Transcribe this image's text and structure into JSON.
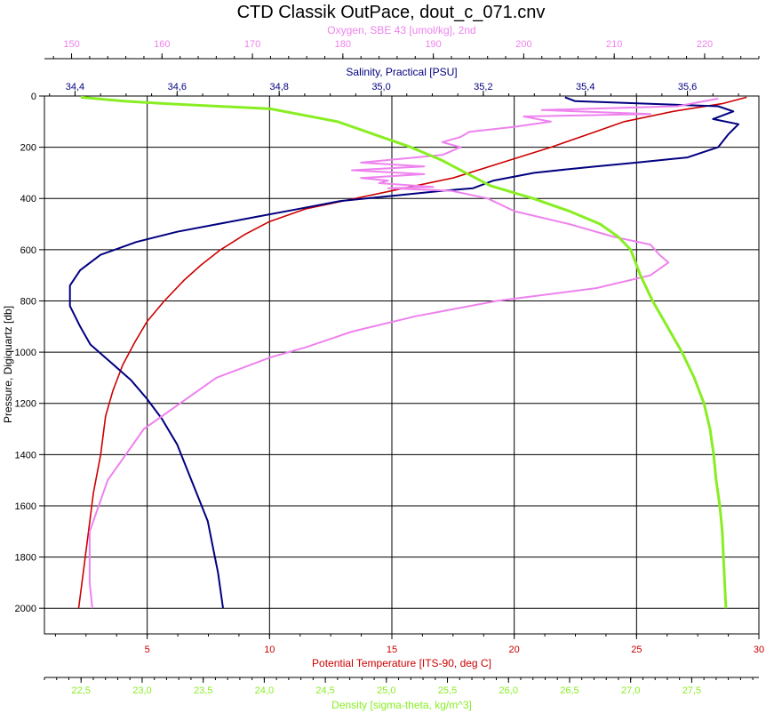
{
  "chart_data": {
    "type": "line",
    "title": "CTD Classik OutPace, dout_c_071.cnv",
    "plot_bg": "#ffffff",
    "grid": true,
    "y_axis": {
      "label": "Pressure, Digiquartz [db]",
      "range": [
        0,
        2100
      ],
      "inverted": true,
      "ticks": [
        0,
        200,
        400,
        600,
        800,
        1000,
        1200,
        1400,
        1600,
        1800,
        2000
      ],
      "tick_labels": [
        "0",
        "200",
        "400",
        "600",
        "800",
        "1000",
        "1200",
        "1400",
        "1600",
        "1800",
        "2000"
      ],
      "color": "#000000"
    },
    "x_axes": [
      {
        "id": "oxygen",
        "label": "Oxygen, SBE 43 [umol/kg], 2nd",
        "position": "top-outer",
        "color": "#ee82ee",
        "range": [
          147,
          226
        ],
        "ticks": [
          150,
          160,
          170,
          180,
          190,
          200,
          210,
          220
        ],
        "tick_labels": [
          "150",
          "160",
          "170",
          "180",
          "190",
          "200",
          "210",
          "220"
        ]
      },
      {
        "id": "salinity",
        "label": "Salinity, Practical [PSU]",
        "position": "top-inner",
        "color": "#000080",
        "range": [
          34.34,
          35.74
        ],
        "ticks": [
          34.4,
          34.6,
          34.8,
          35.0,
          35.2,
          35.4,
          35.6
        ],
        "tick_labels": [
          "34,4",
          "34,6",
          "34,8",
          "35,0",
          "35,2",
          "35,4",
          "35,6"
        ]
      },
      {
        "id": "temperature",
        "label": "Potential Temperature [ITS-90, deg C]",
        "position": "bottom-inner",
        "color": "#cc0000",
        "range": [
          0.8,
          30
        ],
        "ticks": [
          5,
          10,
          15,
          20,
          25,
          30
        ],
        "tick_labels": [
          "5",
          "10",
          "15",
          "20",
          "25",
          "30"
        ]
      },
      {
        "id": "density",
        "label": "Density [sigma-theta, kg/m^3]",
        "position": "bottom-outer",
        "color": "#88ee22",
        "range": [
          22.2,
          28.05
        ],
        "ticks": [
          22.5,
          23.0,
          23.5,
          24.0,
          24.5,
          25.0,
          25.5,
          26.0,
          26.5,
          27.0,
          27.5
        ],
        "tick_labels": [
          "22,5",
          "23,0",
          "23,5",
          "24,0",
          "24,5",
          "25,0",
          "25,5",
          "26,0",
          "26,5",
          "27,0",
          "27,5"
        ]
      }
    ],
    "series": [
      {
        "id": "temperature",
        "axis": "temperature",
        "color": "#cc0000",
        "points": [
          [
            29.5,
            5
          ],
          [
            28.5,
            30
          ],
          [
            26.5,
            60
          ],
          [
            24.5,
            100
          ],
          [
            23.0,
            150
          ],
          [
            21.5,
            200
          ],
          [
            19.5,
            260
          ],
          [
            17.5,
            320
          ],
          [
            15.5,
            360
          ],
          [
            13.0,
            410
          ],
          [
            11.5,
            440
          ],
          [
            10.0,
            490
          ],
          [
            9.0,
            540
          ],
          [
            8.0,
            600
          ],
          [
            7.2,
            660
          ],
          [
            6.5,
            720
          ],
          [
            5.7,
            800
          ],
          [
            5.0,
            880
          ],
          [
            4.5,
            960
          ],
          [
            4.0,
            1050
          ],
          [
            3.6,
            1150
          ],
          [
            3.3,
            1250
          ],
          [
            3.1,
            1400
          ],
          [
            2.8,
            1550
          ],
          [
            2.6,
            1700
          ],
          [
            2.4,
            1850
          ],
          [
            2.2,
            2000
          ]
        ]
      },
      {
        "id": "salinity",
        "axis": "salinity",
        "color": "#000080",
        "points": [
          [
            35.36,
            5
          ],
          [
            35.38,
            20
          ],
          [
            35.66,
            40
          ],
          [
            35.69,
            60
          ],
          [
            35.65,
            90
          ],
          [
            35.7,
            110
          ],
          [
            35.68,
            150
          ],
          [
            35.66,
            200
          ],
          [
            35.6,
            240
          ],
          [
            35.5,
            260
          ],
          [
            35.42,
            275
          ],
          [
            35.37,
            285
          ],
          [
            35.3,
            300
          ],
          [
            35.22,
            330
          ],
          [
            35.18,
            360
          ],
          [
            35.12,
            370
          ],
          [
            35.02,
            390
          ],
          [
            34.92,
            410
          ],
          [
            34.84,
            440
          ],
          [
            34.76,
            470
          ],
          [
            34.68,
            500
          ],
          [
            34.6,
            530
          ],
          [
            34.52,
            570
          ],
          [
            34.45,
            620
          ],
          [
            34.41,
            680
          ],
          [
            34.39,
            740
          ],
          [
            34.39,
            820
          ],
          [
            34.41,
            900
          ],
          [
            34.43,
            970
          ],
          [
            34.47,
            1040
          ],
          [
            34.51,
            1110
          ],
          [
            34.54,
            1180
          ],
          [
            34.57,
            1260
          ],
          [
            34.6,
            1360
          ],
          [
            34.62,
            1460
          ],
          [
            34.64,
            1560
          ],
          [
            34.66,
            1660
          ],
          [
            34.67,
            1760
          ],
          [
            34.68,
            1860
          ],
          [
            34.69,
            2000
          ]
        ]
      },
      {
        "id": "oxygen",
        "axis": "oxygen",
        "color": "#ee82ee",
        "points": [
          [
            221.5,
            10
          ],
          [
            217,
            40
          ],
          [
            202,
            55
          ],
          [
            214,
            70
          ],
          [
            200,
            80
          ],
          [
            203,
            100
          ],
          [
            199,
            120
          ],
          [
            194,
            140
          ],
          [
            193,
            160
          ],
          [
            191,
            180
          ],
          [
            193,
            200
          ],
          [
            191,
            230
          ],
          [
            182,
            260
          ],
          [
            189,
            275
          ],
          [
            181,
            290
          ],
          [
            189,
            305
          ],
          [
            182,
            320
          ],
          [
            185,
            330
          ],
          [
            184,
            340
          ],
          [
            190,
            355
          ],
          [
            185,
            360
          ],
          [
            192,
            370
          ],
          [
            196,
            400
          ],
          [
            199,
            450
          ],
          [
            205,
            500
          ],
          [
            210,
            550
          ],
          [
            214,
            580
          ],
          [
            215,
            620
          ],
          [
            216,
            650
          ],
          [
            214,
            700
          ],
          [
            208,
            750
          ],
          [
            197,
            800
          ],
          [
            188,
            860
          ],
          [
            181,
            920
          ],
          [
            176,
            980
          ],
          [
            172,
            1020
          ],
          [
            166,
            1100
          ],
          [
            162,
            1200
          ],
          [
            158,
            1300
          ],
          [
            156,
            1400
          ],
          [
            154,
            1500
          ],
          [
            153,
            1600
          ],
          [
            152,
            1700
          ],
          [
            152,
            1800
          ],
          [
            152,
            1900
          ],
          [
            152.3,
            2000
          ]
        ]
      },
      {
        "id": "density",
        "axis": "density",
        "color": "#88ee22",
        "points": [
          [
            22.5,
            5
          ],
          [
            22.85,
            20
          ],
          [
            23.2,
            30
          ],
          [
            24.05,
            50
          ],
          [
            24.6,
            100
          ],
          [
            24.9,
            150
          ],
          [
            25.2,
            200
          ],
          [
            25.45,
            250
          ],
          [
            25.65,
            300
          ],
          [
            25.85,
            350
          ],
          [
            26.2,
            400
          ],
          [
            26.5,
            450
          ],
          [
            26.75,
            500
          ],
          [
            26.9,
            550
          ],
          [
            27.0,
            600
          ],
          [
            27.08,
            700
          ],
          [
            27.18,
            800
          ],
          [
            27.3,
            900
          ],
          [
            27.42,
            1000
          ],
          [
            27.52,
            1100
          ],
          [
            27.6,
            1200
          ],
          [
            27.65,
            1300
          ],
          [
            27.68,
            1400
          ],
          [
            27.7,
            1500
          ],
          [
            27.73,
            1600
          ],
          [
            27.75,
            1700
          ],
          [
            27.76,
            1800
          ],
          [
            27.77,
            1900
          ],
          [
            27.78,
            2000
          ]
        ]
      }
    ]
  }
}
